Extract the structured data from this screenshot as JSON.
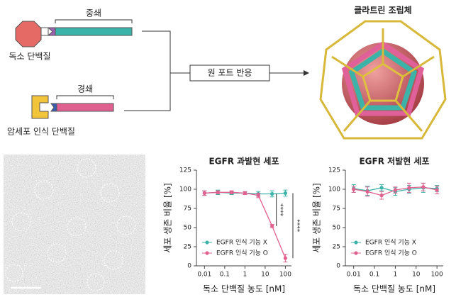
{
  "diagram": {
    "heavy_chain": "중쇄",
    "toxin": "독소 단백질",
    "light_chain": "경쇄",
    "targeting": "암세포 인식 단백질",
    "reaction": "원 포트 반응",
    "assembly": "클라트린 조립체"
  },
  "chart_data": [
    {
      "type": "line",
      "title": "EGFR 과발현 세포",
      "xlabel": "독소 단백질 농도 [nM]",
      "ylabel": "세포 생존 비율 [%]",
      "x": [
        0.01,
        0.046,
        0.22,
        1,
        4.6,
        22,
        100
      ],
      "xlog": true,
      "xlim": [
        0.004,
        200
      ],
      "xticks": [
        0.01,
        0.1,
        1,
        10,
        100
      ],
      "ylim": [
        0,
        125
      ],
      "yticks": [
        0,
        25,
        50,
        75,
        100,
        125
      ],
      "series": [
        {
          "name": "EGFR 인식 기능 X",
          "color": "#3bb3a8",
          "values": [
            95,
            96,
            95,
            95,
            94,
            94,
            95
          ],
          "errors": [
            3,
            3,
            2,
            2,
            3,
            4,
            4
          ]
        },
        {
          "name": "EGFR 인식 기능 O",
          "color": "#e0608f",
          "values": [
            95,
            96,
            96,
            95,
            92,
            52,
            10
          ],
          "errors": [
            3,
            2,
            2,
            2,
            3,
            2,
            5
          ]
        }
      ],
      "annotations": [
        "****",
        "****"
      ],
      "legend": "lower left"
    },
    {
      "type": "line",
      "title": "EGFR 저발현 세포",
      "xlabel": "독소 단백질 농도 [nM]",
      "ylabel": "세포 생존 비율 [%]",
      "x": [
        0.01,
        0.046,
        0.22,
        1,
        4.6,
        22,
        100
      ],
      "xlog": true,
      "xlim": [
        0.004,
        200
      ],
      "xticks": [
        0.01,
        0.1,
        1,
        10,
        100
      ],
      "ylim": [
        0,
        125
      ],
      "yticks": [
        0,
        25,
        50,
        75,
        100,
        125
      ],
      "series": [
        {
          "name": "EGFR 인식 기능 X",
          "color": "#3bb3a8",
          "values": [
            101,
            98,
            102,
            97,
            100,
            102,
            101
          ],
          "errors": [
            5,
            6,
            4,
            5,
            5,
            6,
            4
          ]
        },
        {
          "name": "EGFR 인식 기능 O",
          "color": "#e0608f",
          "values": [
            100,
            97,
            92,
            99,
            102,
            103,
            99
          ],
          "errors": [
            4,
            6,
            5,
            4,
            6,
            5,
            5
          ]
        }
      ],
      "legend": "lower left"
    }
  ]
}
